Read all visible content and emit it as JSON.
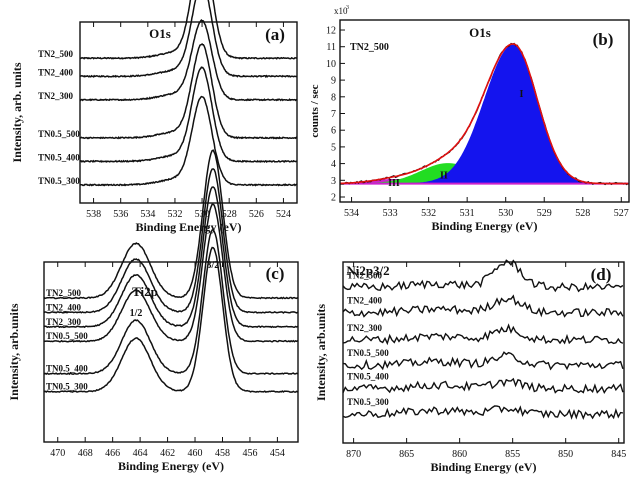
{
  "chart_data": [
    {
      "id": "a",
      "type": "line",
      "panel_label": "(a)",
      "title": "O1s",
      "xlabel": "Binding Energy (eV)",
      "ylabel": "Intensity, arb. units",
      "xlim": [
        539,
        523
      ],
      "x_ticks": [
        538,
        536,
        534,
        532,
        530,
        528,
        526,
        524
      ],
      "peak_center": 530,
      "series": [
        {
          "name": "TN2_500",
          "baseline": 0.8,
          "peak": 0.6
        },
        {
          "name": "TN2_400",
          "baseline": 0.7,
          "peak": 0.5
        },
        {
          "name": "TN2_300",
          "baseline": 0.57,
          "peak": 0.42
        },
        {
          "name": "TN0.5_500",
          "baseline": 0.36,
          "peak": 0.5
        },
        {
          "name": "TN0.5_400",
          "baseline": 0.23,
          "peak": 0.5
        },
        {
          "name": "TN0.5_300",
          "baseline": 0.1,
          "peak": 0.47
        }
      ]
    },
    {
      "id": "b",
      "type": "area",
      "panel_label": "(b)",
      "title": "O1s",
      "sample_label": "TN2_500",
      "xlabel": "Binding Energy (eV)",
      "ylabel": "counts / sec",
      "y_multiplier": "x10",
      "y_multiplier_exp": "3",
      "xlim": [
        534.3,
        526.8
      ],
      "ylim": [
        1.7,
        12.6
      ],
      "x_ticks": [
        534,
        533,
        532,
        531,
        530,
        529,
        528,
        527
      ],
      "y_ticks": [
        2,
        3,
        4,
        5,
        6,
        7,
        8,
        9,
        10,
        11,
        12
      ],
      "background": 2.8,
      "components": [
        {
          "name": "I",
          "center": 529.8,
          "height": 8.3,
          "color": "#1414ee"
        },
        {
          "name": "II",
          "center": 531.5,
          "height": 1.2,
          "color": "#22dd22"
        },
        {
          "name": "III",
          "center": 532.9,
          "height": 0.25,
          "color": "#cc22cc"
        }
      ]
    },
    {
      "id": "c",
      "type": "line",
      "panel_label": "(c)",
      "title": "Ti2p",
      "peak_labels": [
        "1/2",
        "3/2"
      ],
      "xlabel": "Binding Energy (eV)",
      "ylabel": "Intensity, arb.units",
      "xlim": [
        471,
        452.5
      ],
      "x_ticks": [
        470,
        468,
        466,
        464,
        462,
        460,
        458,
        456,
        454
      ],
      "peak_centers": [
        464.3,
        458.7
      ],
      "series": [
        {
          "name": "TN2_500",
          "baseline": 0.8,
          "peak": 0.82
        },
        {
          "name": "TN2_400",
          "baseline": 0.72,
          "peak": 0.8
        },
        {
          "name": "TN2_300",
          "baseline": 0.64,
          "peak": 0.78
        },
        {
          "name": "TN0.5_500",
          "baseline": 0.56,
          "peak": 0.76
        },
        {
          "name": "TN0.5_400",
          "baseline": 0.38,
          "peak": 0.8
        },
        {
          "name": "TN0.5_300",
          "baseline": 0.28,
          "peak": 0.8
        }
      ]
    },
    {
      "id": "d",
      "type": "line",
      "panel_label": "(d)",
      "title": "Ni2p3/2",
      "xlabel": "Binding Energy (eV)",
      "ylabel": "Intensity, arb.units",
      "xlim": [
        871,
        844.5
      ],
      "x_ticks": [
        870,
        865,
        860,
        855,
        850,
        845
      ],
      "peak_center": 855.5,
      "series": [
        {
          "name": "TN2_500",
          "baseline": 0.86,
          "peak": 0.14
        },
        {
          "name": "TN2_400",
          "baseline": 0.72,
          "peak": 0.08
        },
        {
          "name": "TN2_300",
          "baseline": 0.57,
          "peak": 0.06
        },
        {
          "name": "TN0.5_500",
          "baseline": 0.43,
          "peak": 0.05
        },
        {
          "name": "TN0.5_400",
          "baseline": 0.3,
          "peak": 0.04
        },
        {
          "name": "TN0.5_300",
          "baseline": 0.16,
          "peak": 0.03
        }
      ]
    }
  ]
}
